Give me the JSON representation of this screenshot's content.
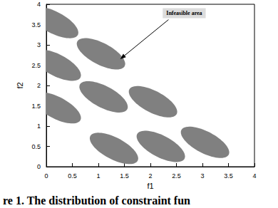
{
  "chart_data": {
    "type": "region",
    "x_label": "f1",
    "y_label": "f2",
    "xlim": [
      0,
      4
    ],
    "ylim": [
      0,
      4
    ],
    "xticks": [
      0,
      0.5,
      1,
      1.5,
      2,
      2.5,
      3,
      3.5,
      4
    ],
    "yticks": [
      0,
      0.5,
      1,
      1.5,
      2,
      2.5,
      3,
      3.5,
      4
    ],
    "color": "#808080",
    "semi_axes": [
      0.55,
      0.25
    ],
    "centers": [
      [
        1.3,
        0.45
      ],
      [
        2.2,
        0.5
      ],
      [
        3.05,
        0.6
      ],
      [
        0.2,
        1.45
      ],
      [
        1.1,
        1.72
      ],
      [
        2.05,
        1.6
      ],
      [
        0.2,
        2.5
      ],
      [
        1.05,
        2.78
      ],
      [
        0.15,
        3.55
      ]
    ],
    "annotation": {
      "text": "Infeasible area",
      "xy": [
        1.42,
        2.65
      ],
      "xytext": [
        2.65,
        3.78
      ]
    },
    "caption": "re 1. The distribution of constraint fun",
    "grid": false
  }
}
